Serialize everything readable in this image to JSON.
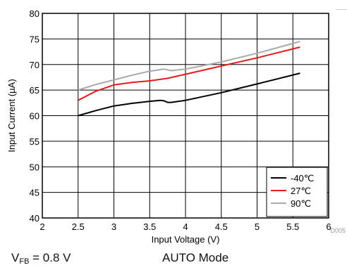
{
  "chart_data": {
    "type": "line",
    "title": "",
    "xlabel": "Input Voltage (V)",
    "ylabel": "Input Current (µA)",
    "xlim": [
      2,
      6
    ],
    "ylim": [
      40,
      80
    ],
    "xticks": [
      2,
      2.5,
      3,
      3.5,
      4,
      4.5,
      5,
      5.5,
      6
    ],
    "yticks": [
      40,
      45,
      50,
      55,
      60,
      65,
      70,
      75,
      80
    ],
    "grid": true,
    "legend_position": "bottom-right",
    "series": [
      {
        "name": "-40℃",
        "color": "#000000",
        "x": [
          2.5,
          2.75,
          3.0,
          3.25,
          3.5,
          3.65,
          3.7,
          3.75,
          3.8,
          4.0,
          4.5,
          5.0,
          5.6
        ],
        "y": [
          60.0,
          61.0,
          61.9,
          62.4,
          62.8,
          63.0,
          62.9,
          62.6,
          62.6,
          63.0,
          64.5,
          66.2,
          68.3
        ]
      },
      {
        "name": "27℃",
        "color": "#e41a1c",
        "x": [
          2.5,
          2.75,
          3.0,
          3.25,
          3.5,
          3.75,
          4.0,
          4.5,
          5.0,
          5.6
        ],
        "y": [
          63.0,
          64.8,
          66.0,
          66.5,
          66.8,
          67.3,
          68.1,
          69.7,
          71.3,
          73.4
        ]
      },
      {
        "name": "90℃",
        "color": "#aaaaaa",
        "x": [
          2.5,
          2.75,
          3.0,
          3.25,
          3.5,
          3.7,
          3.8,
          4.0,
          4.5,
          5.0,
          5.6
        ],
        "y": [
          65.0,
          66.1,
          67.0,
          67.9,
          68.7,
          69.1,
          68.8,
          69.1,
          70.5,
          72.2,
          74.5
        ]
      }
    ],
    "watermark": "D005"
  },
  "footer": {
    "vfb_main": "V",
    "vfb_sub": "FB",
    "vfb_rest": " = 0.8 V",
    "mode": "AUTO Mode"
  }
}
